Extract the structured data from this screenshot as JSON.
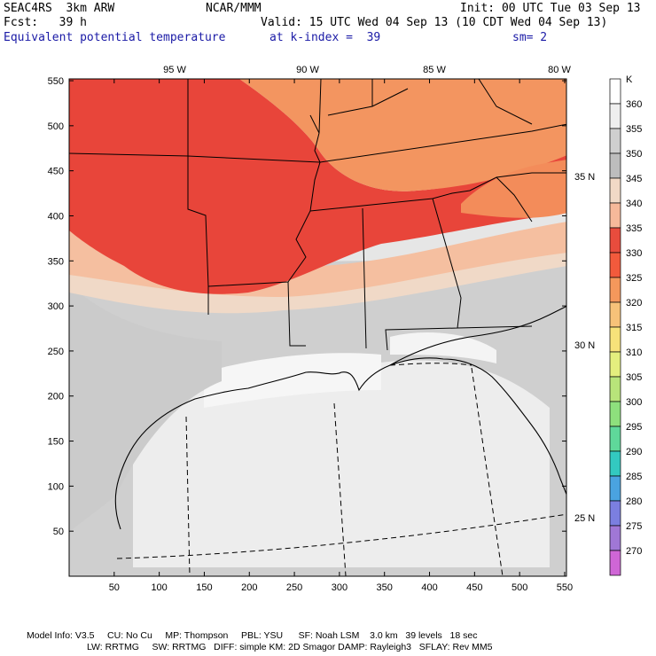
{
  "header": {
    "model": "SEAC4RS  3km ARW",
    "center": "NCAR/MMM",
    "init": "Init: 00 UTC Tue 03 Sep 13",
    "fcst": "Fcst:   39 h",
    "valid": "Valid: 15 UTC Wed 04 Sep 13 (10 CDT Wed 04 Sep 13)",
    "field": "Equivalent potential temperature",
    "level": "at k-index =  39",
    "smooth": "sm= 2"
  },
  "map": {
    "x_ticks": [
      "50",
      "100",
      "150",
      "200",
      "250",
      "300",
      "350",
      "400",
      "450",
      "500",
      "550"
    ],
    "y_ticks": [
      "50",
      "100",
      "150",
      "200",
      "250",
      "300",
      "350",
      "400",
      "450",
      "500",
      "550"
    ],
    "lon_labels": [
      "95 W",
      "90 W",
      "85 W",
      "80 W"
    ],
    "lat_labels": [
      "35 N",
      "30 N",
      "25 N"
    ],
    "colors": {
      "red": "#e8453a",
      "orange": "#f39560",
      "peach": "#f7c0a0",
      "beige": "#f3d9c3",
      "mid_gray": "#c8c8c8",
      "light_gray": "#dcdcdc",
      "pale_gray": "#ececec"
    }
  },
  "colorbar": {
    "unit": "K",
    "labels": [
      "360",
      "355",
      "350",
      "345",
      "340",
      "335",
      "330",
      "325",
      "320",
      "315",
      "310",
      "305",
      "300",
      "295",
      "290",
      "285",
      "280",
      "275",
      "270"
    ],
    "colors": [
      "#ffffff",
      "#efefef",
      "#cfcfcf",
      "#bdbdbd",
      "#f1d9c6",
      "#f6b99a",
      "#e84c3d",
      "#f25a3c",
      "#f4985c",
      "#f7c279",
      "#f7e27a",
      "#e4ef7e",
      "#b8e47a",
      "#8ee07d",
      "#5fd89a",
      "#33c9c0",
      "#4aa3e0",
      "#7b7fe0",
      "#a077d6",
      "#cf66d6"
    ]
  },
  "footer": {
    "line1": "Model Info: V3.5     CU: No Cu     MP: Thompson     PBL: YSU      SF: Noah LSM    3.0 km   39 levels   18 sec",
    "line2": "LW: RRTMG     SW: RRTMG   DIFF: simple KM: 2D Smagor DAMP: Rayleigh3   SFLAY: Rev MM5"
  }
}
